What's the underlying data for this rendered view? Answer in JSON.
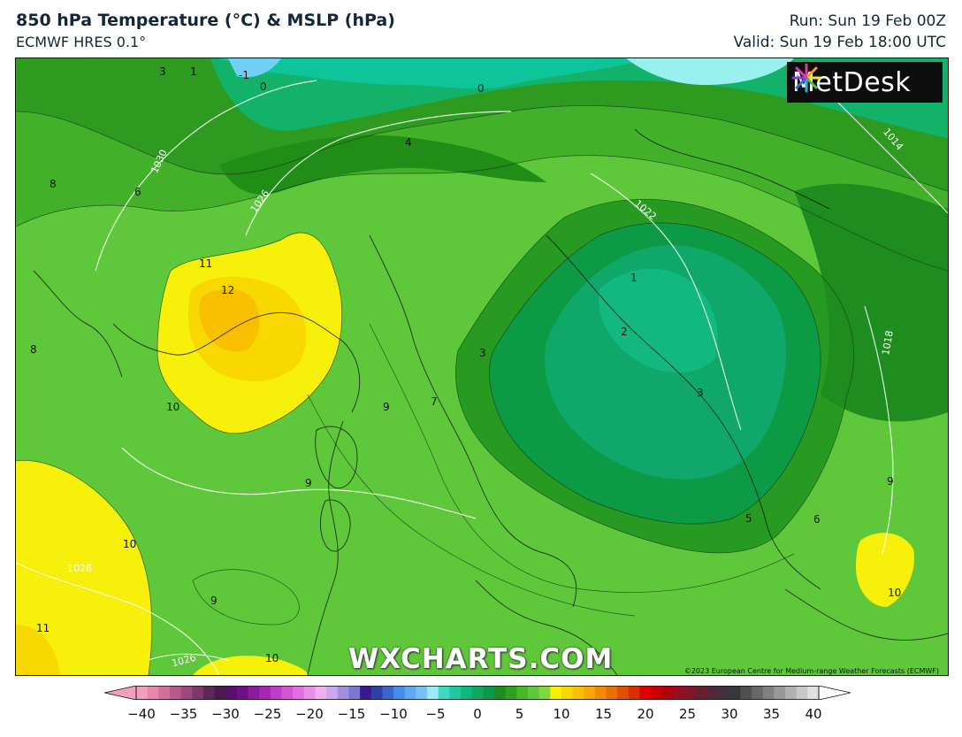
{
  "header": {
    "title": "850 hPa Temperature (°C) & MSLP (hPa)",
    "subtitle": "ECMWF HRES 0.1°",
    "run": "Run: Sun 19 Feb 00Z",
    "valid": "Valid: Sun 19 Feb 18:00 UTC"
  },
  "logo": {
    "text": "MetDesk",
    "icon": "metdesk-starburst-icon"
  },
  "watermark": "WXCHARTS.COM",
  "copyright": "©2023 European Centre for Medium-range Weather Forecasts (ECMWF)",
  "temperature_labels": [
    "3",
    "1",
    "-1",
    "0",
    "0",
    "4",
    "8",
    "6",
    "11",
    "12",
    "10",
    "8",
    "9",
    "7",
    "9",
    "3",
    "1",
    "2",
    "3",
    "10",
    "9",
    "5",
    "6",
    "9",
    "10",
    "11",
    "10"
  ],
  "pressure_labels": [
    "1030",
    "1026",
    "1022",
    "1014",
    "1018",
    "1026",
    "1026"
  ],
  "colorbar": {
    "ticks": [
      "−40",
      "−35",
      "−30",
      "−25",
      "−20",
      "−15",
      "−10",
      "−5",
      "0",
      "5",
      "10",
      "15",
      "20",
      "25",
      "30",
      "35",
      "40"
    ],
    "colors": [
      "#f2a0b8",
      "#e888a8",
      "#d47098",
      "#b85a88",
      "#9c4a7a",
      "#7e3a6a",
      "#60285a",
      "#4a1a4e",
      "#5a0f6a",
      "#6e0f84",
      "#8a1a9e",
      "#a428b4",
      "#be3cc8",
      "#d454d8",
      "#e070e0",
      "#e890e8",
      "#f0b0f0",
      "#c8a8f0",
      "#a090e0",
      "#7878d0",
      "#3a1a8a",
      "#3040a8",
      "#3868c8",
      "#4a8ce8",
      "#60a8f0",
      "#78c0f8",
      "#a0e8ff",
      "#40d8c0",
      "#20c8a0",
      "#10b880",
      "#0ca860",
      "#0c9848",
      "#208c20",
      "#30a020",
      "#48b828",
      "#60c838",
      "#80d840",
      "#f8f000",
      "#f8d800",
      "#f8c000",
      "#f8a800",
      "#f08c00",
      "#e87000",
      "#e05000",
      "#d83000",
      "#e00000",
      "#c80000",
      "#b00010",
      "#981020",
      "#801828",
      "#682030",
      "#502838",
      "#403040",
      "#383838",
      "#505050",
      "#686868",
      "#808080",
      "#989898",
      "#b0b0b0",
      "#c8c8c8",
      "#e0e0e0"
    ]
  }
}
